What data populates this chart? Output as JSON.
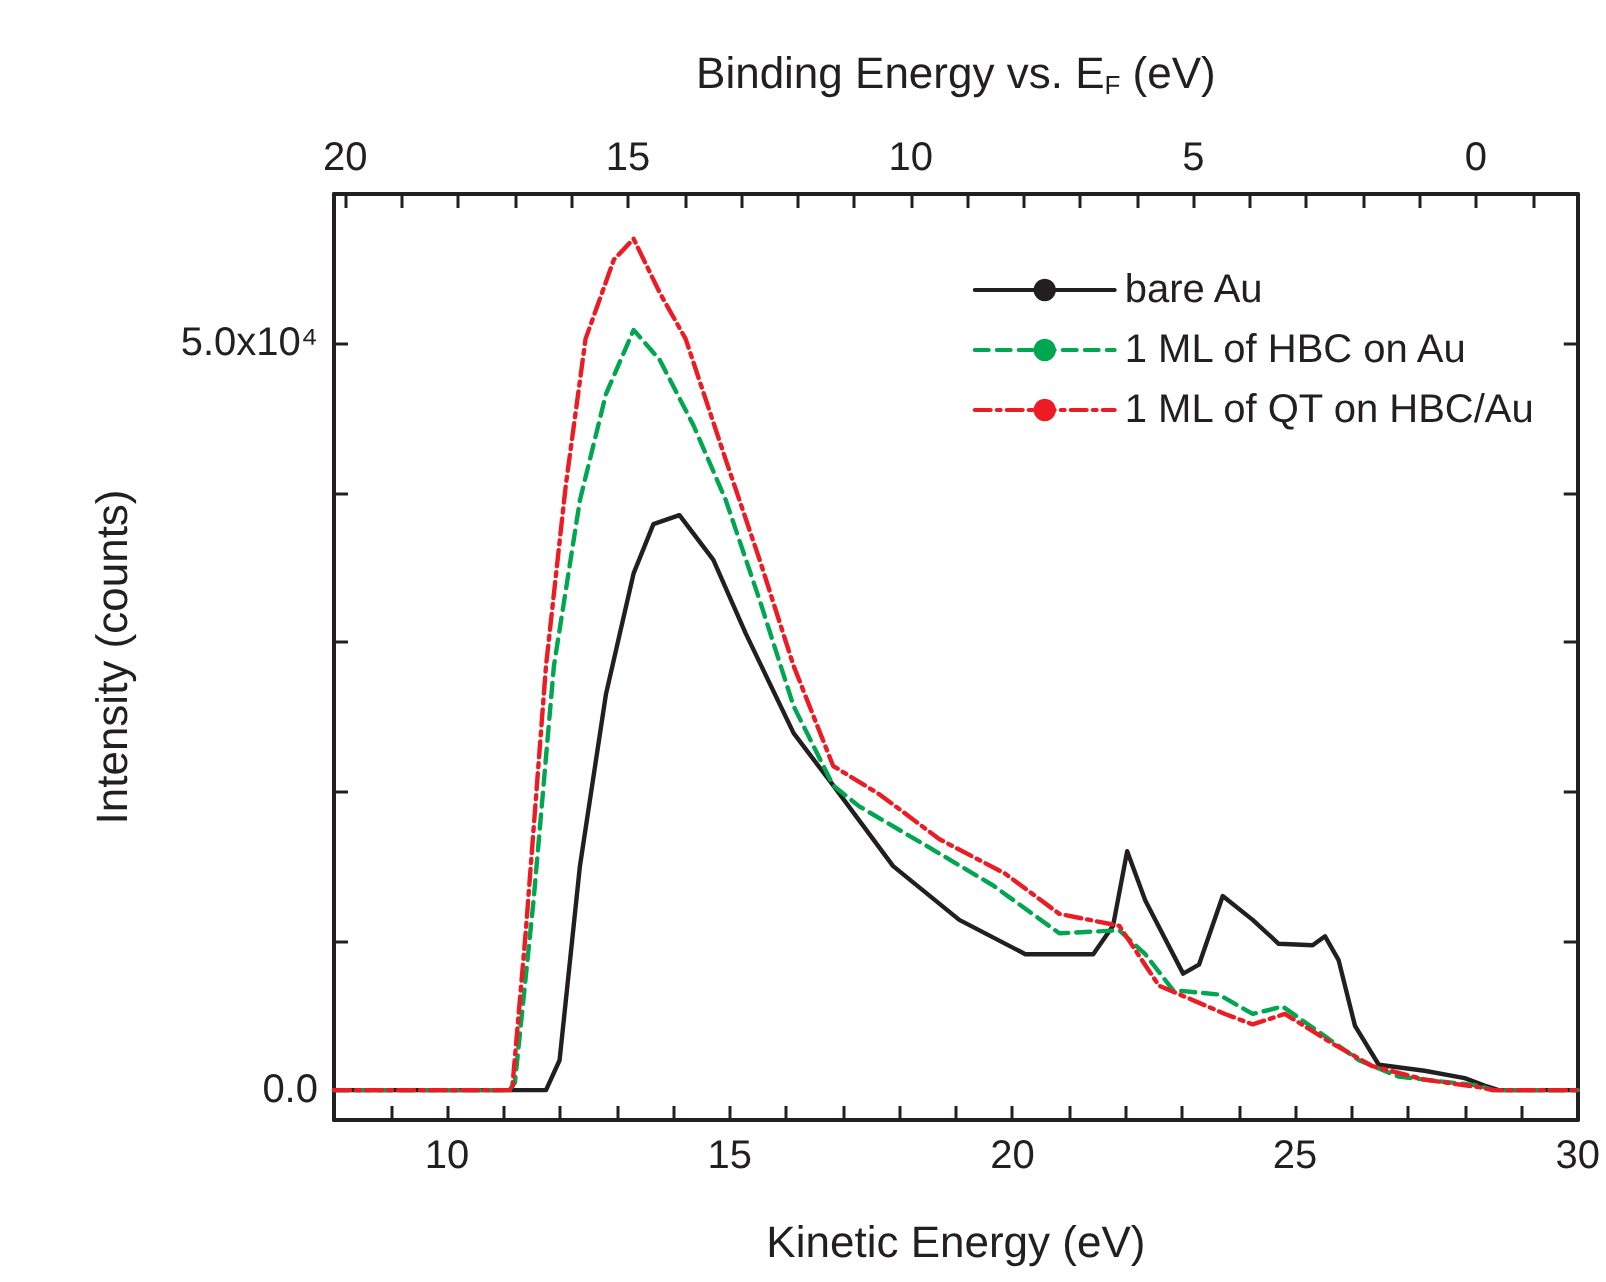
{
  "chart_data": {
    "type": "line",
    "xlabel": "Kinetic Energy (eV)",
    "ylabel": "Intensity (counts)",
    "x2label": "Binding Energy vs. E$_{F}$ (eV)",
    "xlim": [
      8,
      30
    ],
    "xticks": [
      {
        "value": 8,
        "label": null
      },
      {
        "value": 9,
        "label": null
      },
      10,
      {
        "value": 11,
        "label": null
      },
      {
        "value": 12,
        "label": null
      },
      {
        "value": 13,
        "label": null
      },
      {
        "value": 14,
        "label": null
      },
      15,
      {
        "value": 16,
        "label": null
      },
      {
        "value": 17,
        "label": null
      },
      {
        "value": 18,
        "label": null
      },
      {
        "value": 19,
        "label": null
      },
      20,
      {
        "value": 21,
        "label": null
      },
      {
        "value": 22,
        "label": null
      },
      {
        "value": 23,
        "label": null
      },
      {
        "value": 24,
        "label": null
      },
      25,
      {
        "value": 26,
        "label": null
      },
      {
        "value": 27,
        "label": null
      },
      {
        "value": 28,
        "label": null
      },
      {
        "value": 29,
        "label": null
      },
      30
    ],
    "x2lim": [
      20.2,
      -1.8
    ],
    "x2ticks": [
      20,
      {
        "value": 19,
        "label": null
      },
      {
        "value": 18,
        "label": null
      },
      {
        "value": 17,
        "label": null
      },
      {
        "value": 16,
        "label": null
      },
      15,
      {
        "value": 14,
        "label": null
      },
      {
        "value": 13,
        "label": null
      },
      {
        "value": 12,
        "label": null
      },
      {
        "value": 11,
        "label": null
      },
      10,
      {
        "value": 9,
        "label": null
      },
      {
        "value": 8,
        "label": null
      },
      {
        "value": 7,
        "label": null
      },
      {
        "value": 6,
        "label": null
      },
      5,
      {
        "value": 4,
        "label": null
      },
      {
        "value": 3,
        "label": null
      },
      {
        "value": 2,
        "label": null
      },
      {
        "value": 1,
        "label": null
      },
      0,
      {
        "value": -1,
        "label": null
      }
    ],
    "ylim": [
      -2000,
      60000
    ],
    "yticks": [
      {
        "value": 0,
        "label": "0.0"
      },
      {
        "value": 10000,
        "label": null
      },
      {
        "value": 20000,
        "label": null
      },
      {
        "value": 30000,
        "label": null
      },
      {
        "value": 40000,
        "label": null
      },
      {
        "value": 50000,
        "label": "5.0x10⁴"
      }
    ],
    "legend": "top right",
    "grid": false,
    "marker": "none",
    "series": [
      {
        "name": "bare Au",
        "color": "#231f20",
        "line_style": "solid",
        "x": [
          8,
          11.75,
          11.99,
          12.35,
          12.81,
          13.3,
          13.65,
          14.11,
          14.71,
          15.28,
          16.13,
          16.83,
          17.89,
          19.06,
          20.23,
          21.43,
          21.78,
          22.03,
          22.35,
          23.02,
          23.3,
          23.72,
          24.25,
          24.71,
          25.31,
          25.53,
          25.77,
          26.06,
          26.48,
          27.29,
          28,
          28.35,
          28.6,
          30
        ],
        "values": [
          0,
          0,
          2000,
          15000,
          26500,
          34600,
          37900,
          38500,
          35500,
          30600,
          23900,
          20400,
          15000,
          11400,
          9100,
          9100,
          11000,
          16000,
          12700,
          7800,
          8400,
          13000,
          11400,
          9800,
          9700,
          10300,
          8700,
          4300,
          1700,
          1300,
          800,
          300,
          0,
          0
        ]
      },
      {
        "name": "1 ML of HBC on Au",
        "color": "#00a650",
        "line_style": "dashed",
        "x": [
          8,
          11.1,
          11.2,
          11.53,
          11.89,
          12.35,
          12.81,
          13.3,
          13.76,
          14.36,
          14.93,
          15.53,
          16.13,
          16.83,
          17.29,
          18.46,
          19.66,
          20.83,
          21.89,
          22.35,
          22.84,
          23.65,
          24.25,
          24.78,
          25.53,
          26.13,
          26.83,
          28.25,
          28.5,
          30
        ],
        "values": [
          0,
          0,
          500,
          12700,
          28400,
          39500,
          46600,
          50900,
          48900,
          44500,
          39500,
          32800,
          25700,
          20400,
          19000,
          16400,
          13700,
          10500,
          10700,
          9100,
          6700,
          6400,
          5100,
          5600,
          3600,
          2000,
          900,
          300,
          0,
          0
        ]
      },
      {
        "name": "1 ML of QT on HBC/Au",
        "color": "#ed1c24",
        "line_style": "dashdot",
        "x": [
          8,
          11.15,
          11.39,
          11.75,
          12.1,
          12.45,
          12.95,
          13.3,
          13.76,
          14.22,
          14.93,
          15.53,
          16.13,
          16.83,
          17.65,
          18.71,
          19.87,
          20.83,
          21.89,
          22.59,
          23.76,
          24.25,
          24.82,
          25.67,
          26.37,
          27.29,
          28.25,
          28.5,
          30
        ],
        "values": [
          0,
          0,
          10500,
          28400,
          40500,
          50300,
          55600,
          57000,
          53400,
          50300,
          42200,
          35500,
          28400,
          21700,
          19800,
          16800,
          14500,
          11800,
          11000,
          7000,
          5100,
          4400,
          5100,
          3100,
          1600,
          700,
          200,
          0,
          0
        ]
      }
    ]
  }
}
